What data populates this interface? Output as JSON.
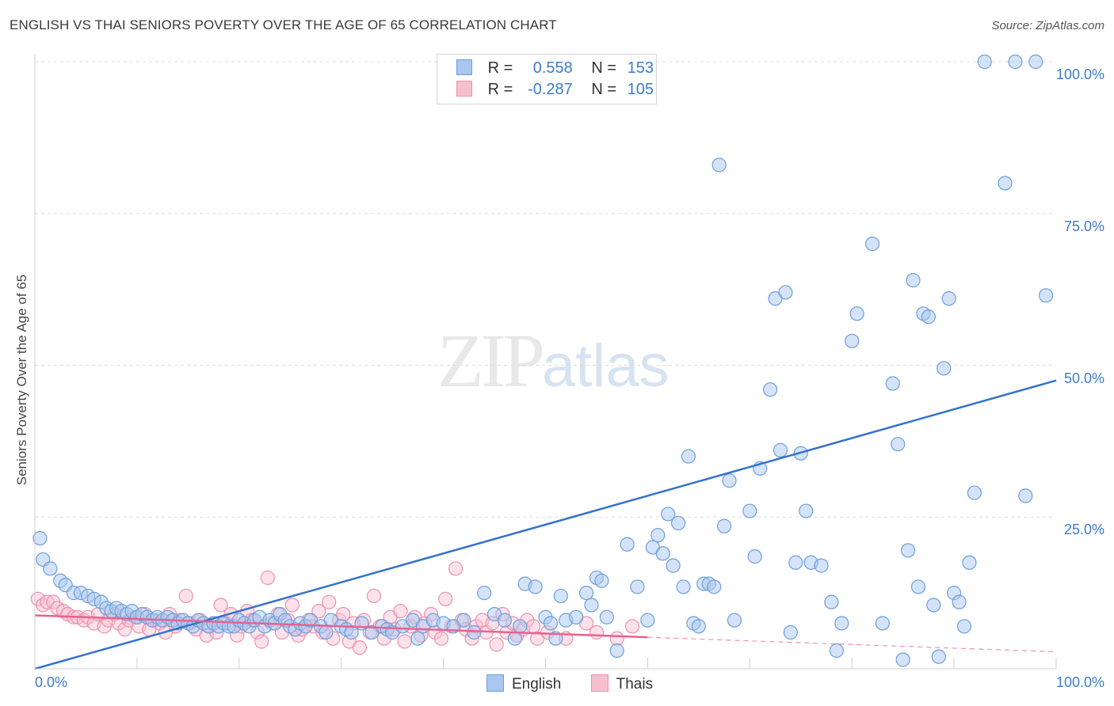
{
  "title": "ENGLISH VS THAI SENIORS POVERTY OVER THE AGE OF 65 CORRELATION CHART",
  "source": "Source: ZipAtlas.com",
  "watermark": {
    "zip": "ZIP",
    "atlas": "atlas"
  },
  "colors": {
    "english_fill": "#a9c7ef",
    "english_stroke": "#6d9fdc",
    "english_line": "#3471cc",
    "thai_fill": "#f6bfd0",
    "thai_stroke": "#ee91ae",
    "thai_line": "#e8628f",
    "grid": "#dcdcdc",
    "tick_text": "#3d7cc9"
  },
  "legend_top": {
    "rows": [
      {
        "r_label": "R =",
        "r_value": "0.558",
        "n_label": "N =",
        "n_value": "153"
      },
      {
        "r_label": "R =",
        "r_value": "-0.287",
        "n_label": "N =",
        "n_value": "105"
      }
    ]
  },
  "bottom_legend": {
    "english": "English",
    "thai": "Thais"
  },
  "chart_data": {
    "type": "scatter",
    "title": "ENGLISH VS THAI SENIORS POVERTY OVER THE AGE OF 65 CORRELATION CHART",
    "xlabel": "",
    "ylabel": "Seniors Poverty Over the Age of 65",
    "xlim": [
      0,
      100
    ],
    "ylim": [
      0,
      100
    ],
    "x_tick_labels": [
      "0.0%",
      "100.0%"
    ],
    "y_tick_labels": [
      "100.0%",
      "75.0%",
      "50.0%",
      "25.0%"
    ],
    "y_tick_values": [
      100,
      75,
      50,
      25
    ],
    "grid": true,
    "legend_placement": "top-center",
    "series": [
      {
        "name": "English",
        "R": 0.558,
        "N": 153,
        "trend": {
          "x": [
            0,
            100
          ],
          "y": [
            0.0,
            47.5
          ],
          "style": "solid"
        },
        "points": [
          [
            0.5,
            21.5
          ],
          [
            0.8,
            18
          ],
          [
            1.5,
            16.5
          ],
          [
            2.5,
            14.5
          ],
          [
            3,
            13.8
          ],
          [
            3.8,
            12.5
          ],
          [
            4.5,
            12.5
          ],
          [
            5.2,
            12
          ],
          [
            5.8,
            11.5
          ],
          [
            6.5,
            11
          ],
          [
            7,
            10
          ],
          [
            7.5,
            9.5
          ],
          [
            8,
            10
          ],
          [
            8.5,
            9.5
          ],
          [
            9,
            9
          ],
          [
            9.5,
            9.5
          ],
          [
            10,
            8.5
          ],
          [
            10.5,
            9
          ],
          [
            11,
            8.5
          ],
          [
            11.5,
            8
          ],
          [
            12,
            8.5
          ],
          [
            12.5,
            8
          ],
          [
            13,
            8.5
          ],
          [
            13.5,
            8
          ],
          [
            14,
            7.5
          ],
          [
            14.5,
            8
          ],
          [
            15,
            7.5
          ],
          [
            15.5,
            7
          ],
          [
            16,
            8
          ],
          [
            16.5,
            7.5
          ],
          [
            17,
            7
          ],
          [
            17.5,
            7.5
          ],
          [
            18,
            7
          ],
          [
            18.5,
            7.5
          ],
          [
            19,
            7
          ],
          [
            19.5,
            7
          ],
          [
            20,
            8
          ],
          [
            20.5,
            7.5
          ],
          [
            21,
            7
          ],
          [
            21.5,
            8
          ],
          [
            22,
            8.5
          ],
          [
            22.5,
            7
          ],
          [
            23,
            8
          ],
          [
            23.5,
            7.5
          ],
          [
            24,
            9
          ],
          [
            24.5,
            8
          ],
          [
            25,
            7
          ],
          [
            25.5,
            6.5
          ],
          [
            26,
            7.5
          ],
          [
            26.5,
            7
          ],
          [
            27,
            8
          ],
          [
            28,
            7
          ],
          [
            28.5,
            6
          ],
          [
            29,
            8
          ],
          [
            30,
            7
          ],
          [
            30.5,
            6.5
          ],
          [
            31,
            6
          ],
          [
            32,
            7.5
          ],
          [
            33,
            6
          ],
          [
            34,
            7
          ],
          [
            34.5,
            6.5
          ],
          [
            35,
            6
          ],
          [
            36,
            7
          ],
          [
            37,
            8
          ],
          [
            37.5,
            5
          ],
          [
            38,
            7
          ],
          [
            39,
            8
          ],
          [
            40,
            7.5
          ],
          [
            41,
            7
          ],
          [
            42,
            8
          ],
          [
            43,
            6
          ],
          [
            44,
            12.5
          ],
          [
            45,
            9
          ],
          [
            46,
            8
          ],
          [
            47,
            5
          ],
          [
            47.5,
            7
          ],
          [
            48,
            14
          ],
          [
            49,
            13.5
          ],
          [
            50,
            8.5
          ],
          [
            50.5,
            7.5
          ],
          [
            51,
            5
          ],
          [
            51.5,
            12
          ],
          [
            52,
            8
          ],
          [
            53,
            8.5
          ],
          [
            54,
            12.5
          ],
          [
            54.5,
            10.5
          ],
          [
            55,
            15
          ],
          [
            55.5,
            14.5
          ],
          [
            56,
            8.5
          ],
          [
            57,
            3
          ],
          [
            58,
            20.5
          ],
          [
            59,
            13.5
          ],
          [
            60,
            8
          ],
          [
            60.5,
            20
          ],
          [
            61,
            22
          ],
          [
            61.5,
            19
          ],
          [
            62,
            25.5
          ],
          [
            62.5,
            17
          ],
          [
            63,
            24
          ],
          [
            63.5,
            13.5
          ],
          [
            64,
            35
          ],
          [
            64.5,
            7.5
          ],
          [
            65,
            7
          ],
          [
            65.5,
            14
          ],
          [
            66,
            14
          ],
          [
            66.5,
            13.5
          ],
          [
            67,
            83
          ],
          [
            67.5,
            23.5
          ],
          [
            68,
            31
          ],
          [
            68.5,
            8
          ],
          [
            70,
            26
          ],
          [
            70.5,
            18.5
          ],
          [
            71,
            33
          ],
          [
            72,
            46
          ],
          [
            72.5,
            61
          ],
          [
            73,
            36
          ],
          [
            73.5,
            62
          ],
          [
            74,
            6
          ],
          [
            74.5,
            17.5
          ],
          [
            75,
            35.5
          ],
          [
            75.5,
            26
          ],
          [
            76,
            17.5
          ],
          [
            77,
            17
          ],
          [
            78,
            11
          ],
          [
            78.5,
            3
          ],
          [
            79,
            7.5
          ],
          [
            80,
            54
          ],
          [
            80.5,
            58.5
          ],
          [
            82,
            70
          ],
          [
            83,
            7.5
          ],
          [
            84,
            47
          ],
          [
            84.5,
            37
          ],
          [
            85,
            1.5
          ],
          [
            85.5,
            19.5
          ],
          [
            86,
            64
          ],
          [
            86.5,
            13.5
          ],
          [
            87,
            58.5
          ],
          [
            87.5,
            58
          ],
          [
            88,
            10.5
          ],
          [
            88.5,
            2
          ],
          [
            89,
            49.5
          ],
          [
            89.5,
            61
          ],
          [
            90,
            12.5
          ],
          [
            90.5,
            11
          ],
          [
            91,
            7
          ],
          [
            91.5,
            17.5
          ],
          [
            92,
            29
          ],
          [
            93,
            100
          ],
          [
            96,
            100
          ],
          [
            98,
            100
          ],
          [
            99,
            61.5
          ],
          [
            95,
            80
          ],
          [
            97,
            28.5
          ]
        ]
      },
      {
        "name": "Thais",
        "R": -0.287,
        "N": 105,
        "trend": {
          "x": [
            0,
            60
          ],
          "y": [
            8.8,
            5.2
          ],
          "style": "solid",
          "dashed_extension": {
            "x": [
              60,
              100
            ],
            "y": [
              5.2,
              2.8
            ]
          }
        },
        "points": [
          [
            0.3,
            11.5
          ],
          [
            0.8,
            10.5
          ],
          [
            1.2,
            11
          ],
          [
            1.8,
            11
          ],
          [
            2.2,
            10
          ],
          [
            2.8,
            9.5
          ],
          [
            3.2,
            9
          ],
          [
            3.8,
            8.5
          ],
          [
            4.2,
            8.5
          ],
          [
            4.8,
            8
          ],
          [
            5.2,
            8.5
          ],
          [
            5.8,
            7.5
          ],
          [
            6.2,
            9
          ],
          [
            6.8,
            7
          ],
          [
            7.2,
            8
          ],
          [
            7.8,
            9
          ],
          [
            8.2,
            7.5
          ],
          [
            8.8,
            6.5
          ],
          [
            9.2,
            8
          ],
          [
            9.8,
            8.5
          ],
          [
            10.2,
            7
          ],
          [
            10.8,
            9
          ],
          [
            11.2,
            6.5
          ],
          [
            11.8,
            8
          ],
          [
            12.2,
            7.5
          ],
          [
            12.8,
            6
          ],
          [
            13.2,
            9
          ],
          [
            13.8,
            7
          ],
          [
            14.2,
            8
          ],
          [
            14.8,
            12
          ],
          [
            15.2,
            7.5
          ],
          [
            15.8,
            6.5
          ],
          [
            16.2,
            8
          ],
          [
            16.8,
            5.5
          ],
          [
            17.2,
            7
          ],
          [
            17.8,
            6
          ],
          [
            18.2,
            10.5
          ],
          [
            18.8,
            7.5
          ],
          [
            19.2,
            9
          ],
          [
            19.8,
            5.5
          ],
          [
            20.2,
            7
          ],
          [
            20.8,
            9.5
          ],
          [
            21.2,
            8
          ],
          [
            21.8,
            6
          ],
          [
            22.2,
            4.5
          ],
          [
            22.8,
            15
          ],
          [
            23.2,
            7.5
          ],
          [
            23.8,
            9
          ],
          [
            24.2,
            6
          ],
          [
            24.8,
            8
          ],
          [
            25.2,
            10.5
          ],
          [
            25.8,
            5.5
          ],
          [
            26.2,
            6.5
          ],
          [
            26.8,
            8
          ],
          [
            27.2,
            7
          ],
          [
            27.8,
            9.5
          ],
          [
            28.2,
            6
          ],
          [
            28.8,
            11
          ],
          [
            29.2,
            5
          ],
          [
            29.8,
            8
          ],
          [
            30.2,
            9
          ],
          [
            30.8,
            4.5
          ],
          [
            31.2,
            7.5
          ],
          [
            31.8,
            3.5
          ],
          [
            32.2,
            8
          ],
          [
            32.8,
            6
          ],
          [
            33.2,
            12
          ],
          [
            33.8,
            7
          ],
          [
            34.2,
            5
          ],
          [
            34.8,
            8.5
          ],
          [
            35.2,
            6.5
          ],
          [
            35.8,
            9.5
          ],
          [
            36.2,
            4.5
          ],
          [
            36.8,
            7
          ],
          [
            37.2,
            8.5
          ],
          [
            37.8,
            5.5
          ],
          [
            38.2,
            7.5
          ],
          [
            38.8,
            9
          ],
          [
            39.2,
            6
          ],
          [
            39.8,
            5
          ],
          [
            40.2,
            11.5
          ],
          [
            40.8,
            7
          ],
          [
            41.2,
            16.5
          ],
          [
            41.8,
            8
          ],
          [
            42.2,
            6.5
          ],
          [
            42.8,
            5
          ],
          [
            43.2,
            7
          ],
          [
            43.8,
            8
          ],
          [
            44.2,
            6
          ],
          [
            44.8,
            7.5
          ],
          [
            45.2,
            4
          ],
          [
            45.8,
            9
          ],
          [
            46.2,
            6
          ],
          [
            46.8,
            7.5
          ],
          [
            47.2,
            5.5
          ],
          [
            47.8,
            6.5
          ],
          [
            48.2,
            8
          ],
          [
            48.8,
            7
          ],
          [
            49.2,
            5
          ],
          [
            50.2,
            6
          ],
          [
            52,
            5
          ],
          [
            54,
            7.5
          ],
          [
            55,
            6
          ],
          [
            57,
            5
          ],
          [
            58.5,
            7
          ]
        ]
      }
    ]
  }
}
